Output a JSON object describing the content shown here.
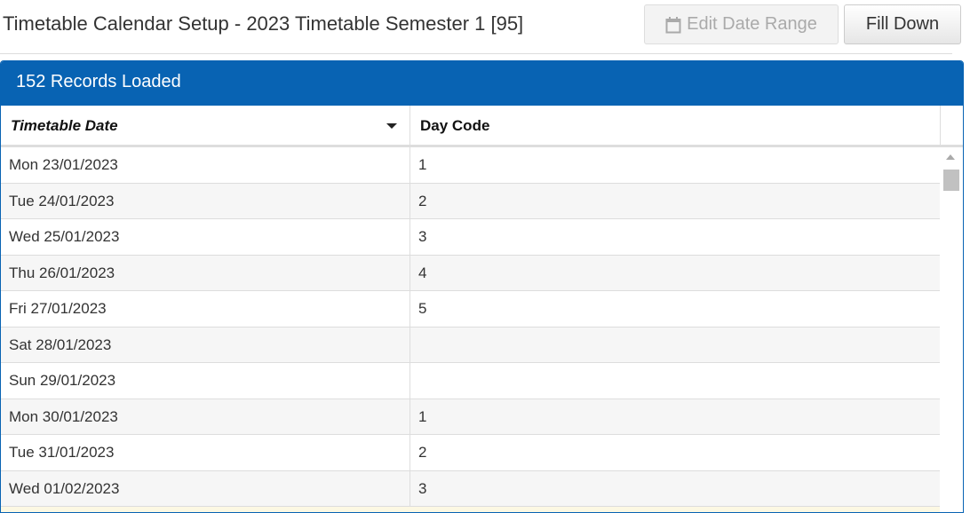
{
  "header": {
    "title": "Timetable Calendar Setup - 2023 Timetable Semester 1 [95]",
    "edit_date_range": "Edit Date Range",
    "fill_down": "Fill Down"
  },
  "panel": {
    "heading": "152 Records Loaded",
    "accent": "#0863b3"
  },
  "table": {
    "columns": [
      "Timetable Date",
      "Day Code"
    ],
    "sort": "Timetable Date descending-caret",
    "rows": [
      [
        "Mon 23/01/2023",
        "1"
      ],
      [
        "Tue 24/01/2023",
        "2"
      ],
      [
        "Wed 25/01/2023",
        "3"
      ],
      [
        "Thu 26/01/2023",
        "4"
      ],
      [
        "Fri 27/01/2023",
        "5"
      ],
      [
        "Sat 28/01/2023",
        ""
      ],
      [
        "Sun 29/01/2023",
        ""
      ],
      [
        "Mon 30/01/2023",
        "1"
      ],
      [
        "Tue 31/01/2023",
        "2"
      ],
      [
        "Wed 01/02/2023",
        "3"
      ]
    ]
  }
}
